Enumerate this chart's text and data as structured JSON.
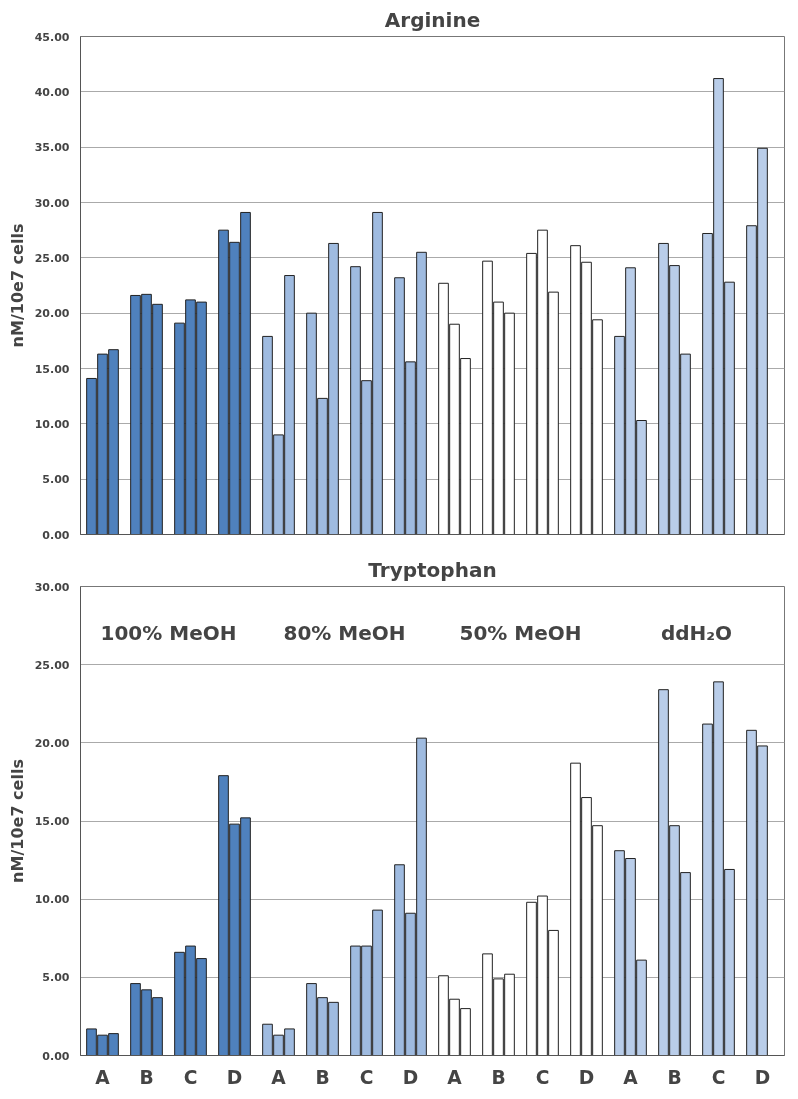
{
  "chart_data": [
    {
      "type": "bar",
      "title": "Arginine",
      "ylabel": "nM/10e7 cells",
      "categories": [
        null,
        null,
        null,
        null,
        null,
        null,
        null,
        null,
        null,
        null,
        null,
        null,
        null,
        null,
        null,
        null
      ],
      "series": [
        {
          "colors": [
            "#4f81bd",
            "#4f81bd",
            "#4f81bd",
            "#4f81bd",
            "#9fbbe0",
            "#9fbbe0",
            "#9fbbe0",
            "#9fbbe0",
            "#ffffff",
            "#ffffff",
            "#ffffff",
            "#ffffff",
            "#b9cde9",
            "#b9cde9",
            "#b9cde9",
            "#b9cde9"
          ],
          "values": [
            14.1,
            21.6,
            19.1,
            27.5,
            17.9,
            20.0,
            24.2,
            23.2,
            22.7,
            24.7,
            25.4,
            26.1,
            17.9,
            26.3,
            27.2,
            27.9
          ]
        },
        {
          "colors": [
            "#4f81bd",
            "#4f81bd",
            "#4f81bd",
            "#4f81bd",
            "#9fbbe0",
            "#9fbbe0",
            "#9fbbe0",
            "#9fbbe0",
            "#ffffff",
            "#ffffff",
            "#ffffff",
            "#ffffff",
            "#b9cde9",
            "#b9cde9",
            "#b9cde9",
            "#b9cde9"
          ],
          "values": [
            16.3,
            21.7,
            21.2,
            26.4,
            9.0,
            12.3,
            13.9,
            15.6,
            19.0,
            21.0,
            27.5,
            24.6,
            24.1,
            24.3,
            41.2,
            34.9
          ]
        },
        {
          "colors": [
            "#4f81bd",
            "#4f81bd",
            "#4f81bd",
            "#4f81bd",
            "#9fbbe0",
            "#9fbbe0",
            "#9fbbe0",
            "#9fbbe0",
            "#ffffff",
            "#ffffff",
            "#ffffff",
            "#ffffff",
            "#b9cde9",
            "#b9cde9",
            "#b9cde9",
            "#b9cde9"
          ],
          "values": [
            16.7,
            20.8,
            21.0,
            29.1,
            23.4,
            26.3,
            29.1,
            25.5,
            15.9,
            20.0,
            21.9,
            19.4,
            10.3,
            16.3,
            22.8,
            null
          ]
        }
      ],
      "ylim": [
        0,
        45
      ],
      "yticks": [
        {
          "value": 0,
          "label": "0.00"
        },
        {
          "value": 5,
          "label": "5.00"
        },
        {
          "value": 10,
          "label": "10.00"
        },
        {
          "value": 15,
          "label": "15.00"
        },
        {
          "value": 20,
          "label": "20.00"
        },
        {
          "value": 25,
          "label": "25.00"
        },
        {
          "value": 30,
          "label": "30.00"
        },
        {
          "value": 35,
          "label": "35.00"
        },
        {
          "value": 40,
          "label": "40.00"
        },
        {
          "value": 45,
          "label": "45.00"
        }
      ],
      "grid": "y",
      "tick_labels": "y"
    },
    {
      "type": "bar",
      "title": "Tryptophan",
      "ylabel": "nM/10e7 cells",
      "annotations": [
        "100% MeOH",
        "80% MeOH",
        "50% MeOH",
        "ddH₂O"
      ],
      "categories": [
        "A",
        "B",
        "C",
        "D",
        "A",
        "B",
        "C",
        "D",
        "A",
        "B",
        "C",
        "D",
        "A",
        "B",
        "C",
        "D"
      ],
      "series": [
        {
          "colors": [
            "#4f81bd",
            "#4f81bd",
            "#4f81bd",
            "#4f81bd",
            "#9fbbe0",
            "#9fbbe0",
            "#9fbbe0",
            "#9fbbe0",
            "#ffffff",
            "#ffffff",
            "#ffffff",
            "#ffffff",
            "#b9cde9",
            "#b9cde9",
            "#b9cde9",
            "#b9cde9"
          ],
          "values": [
            1.7,
            4.6,
            6.6,
            17.9,
            2.0,
            4.6,
            7.0,
            12.2,
            5.1,
            6.5,
            9.8,
            18.7,
            13.1,
            23.4,
            21.2,
            20.8
          ]
        },
        {
          "colors": [
            "#4f81bd",
            "#4f81bd",
            "#4f81bd",
            "#4f81bd",
            "#9fbbe0",
            "#9fbbe0",
            "#9fbbe0",
            "#9fbbe0",
            "#ffffff",
            "#ffffff",
            "#ffffff",
            "#ffffff",
            "#b9cde9",
            "#b9cde9",
            "#b9cde9",
            "#b9cde9"
          ],
          "values": [
            1.3,
            4.2,
            7.0,
            14.8,
            1.3,
            3.7,
            7.0,
            9.1,
            3.6,
            4.9,
            10.2,
            16.5,
            12.6,
            14.7,
            23.9,
            19.8
          ]
        },
        {
          "colors": [
            "#4f81bd",
            "#4f81bd",
            "#4f81bd",
            "#4f81bd",
            "#9fbbe0",
            "#9fbbe0",
            "#9fbbe0",
            "#9fbbe0",
            "#ffffff",
            "#ffffff",
            "#ffffff",
            "#ffffff",
            "#b9cde9",
            "#b9cde9",
            "#b9cde9",
            "#b9cde9"
          ],
          "values": [
            1.4,
            3.7,
            6.2,
            15.2,
            1.7,
            3.4,
            9.3,
            20.3,
            3.0,
            5.2,
            8.0,
            14.7,
            6.1,
            11.7,
            11.9,
            null
          ]
        }
      ],
      "ylim": [
        0,
        30
      ],
      "yticks": [
        {
          "value": 0,
          "label": "0.00"
        },
        {
          "value": 5,
          "label": "5.00"
        },
        {
          "value": 10,
          "label": "10.00"
        },
        {
          "value": 15,
          "label": "15.00"
        },
        {
          "value": 20,
          "label": "20.00"
        },
        {
          "value": 25,
          "label": "25.00"
        },
        {
          "value": 30,
          "label": "30.00"
        }
      ],
      "grid": "y"
    }
  ]
}
